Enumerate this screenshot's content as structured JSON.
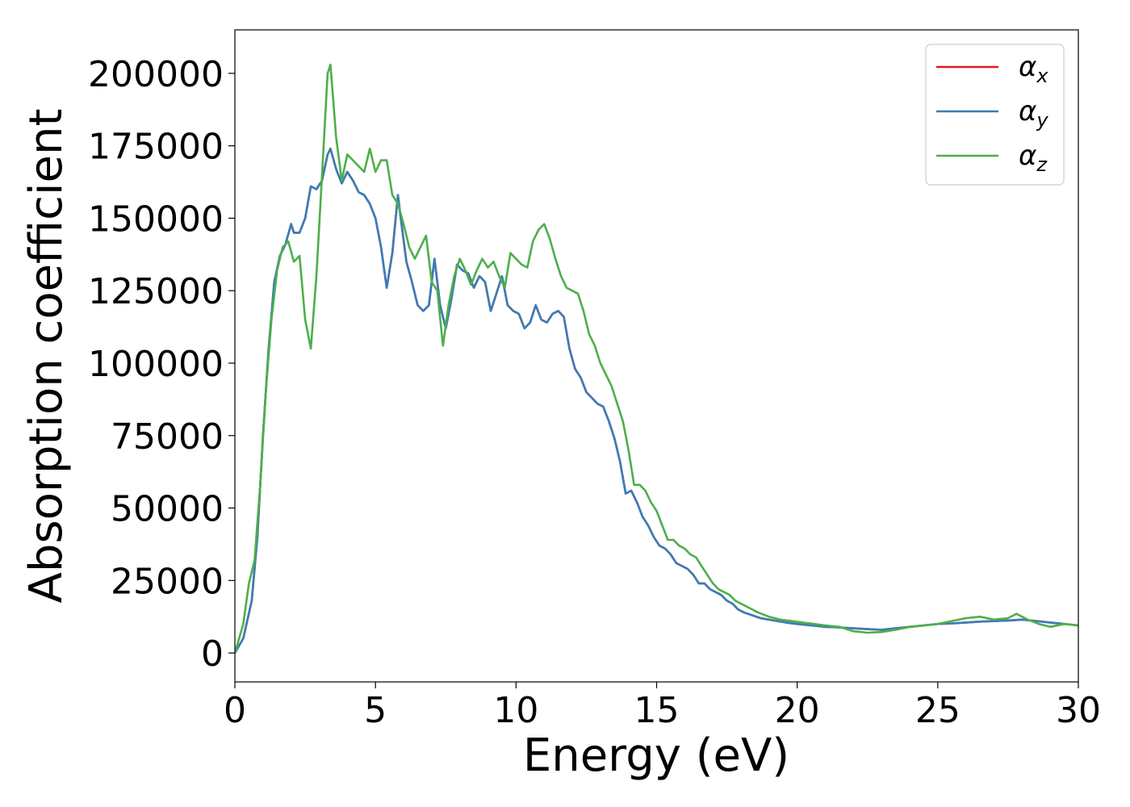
{
  "chart_data": {
    "type": "line",
    "title": "",
    "xlabel": "Energy (eV)",
    "ylabel": "Absorption coefficient",
    "xlim": [
      0,
      30
    ],
    "ylim": [
      -10000,
      215000
    ],
    "xticks": [
      0,
      5,
      10,
      15,
      20,
      25,
      30
    ],
    "yticks": [
      0,
      25000,
      50000,
      75000,
      100000,
      125000,
      150000,
      175000,
      200000
    ],
    "xtick_labels": [
      "0",
      "5",
      "10",
      "15",
      "20",
      "25",
      "30"
    ],
    "ytick_labels": [
      "0",
      "25000",
      "50000",
      "75000",
      "100000",
      "125000",
      "150000",
      "175000",
      "200000"
    ],
    "grid": false,
    "legend": {
      "position": "top-right",
      "entries": [
        {
          "base": "α",
          "sub": "x"
        },
        {
          "base": "α",
          "sub": "y"
        },
        {
          "base": "α",
          "sub": "z"
        }
      ]
    },
    "series": [
      {
        "name": "αx",
        "color": "#e41a1c",
        "x": [
          0,
          0.3,
          0.6,
          0.8,
          1.0,
          1.2,
          1.4,
          1.6,
          1.8,
          2.0,
          2.1,
          2.3,
          2.5,
          2.7,
          2.9,
          3.1,
          3.3,
          3.4,
          3.6,
          3.8,
          4.0,
          4.2,
          4.4,
          4.6,
          4.8,
          5.0,
          5.2,
          5.4,
          5.6,
          5.8,
          5.9,
          6.1,
          6.3,
          6.5,
          6.7,
          6.9,
          7.1,
          7.3,
          7.5,
          7.7,
          7.9,
          8.1,
          8.3,
          8.5,
          8.7,
          8.9,
          9.1,
          9.3,
          9.5,
          9.7,
          9.9,
          10.1,
          10.3,
          10.5,
          10.7,
          10.9,
          11.1,
          11.3,
          11.5,
          11.7,
          11.9,
          12.1,
          12.3,
          12.5,
          12.7,
          12.9,
          13.1,
          13.3,
          13.5,
          13.7,
          13.9,
          14.1,
          14.3,
          14.5,
          14.7,
          14.9,
          15.1,
          15.3,
          15.5,
          15.7,
          15.9,
          16.1,
          16.3,
          16.5,
          16.7,
          16.9,
          17.1,
          17.3,
          17.5,
          17.7,
          17.9,
          18.1,
          18.4,
          18.7,
          19.0,
          19.3,
          19.6,
          20.0,
          20.5,
          21.0,
          21.5,
          22.0,
          22.5,
          23.0,
          23.5,
          24.0,
          24.5,
          25.0,
          25.5,
          26.0,
          26.5,
          27.0,
          27.5,
          28.0,
          28.5,
          29.0,
          29.5,
          30.0
        ],
        "values": [
          0,
          5000,
          18000,
          40000,
          75000,
          105000,
          128000,
          137000,
          141000,
          148000,
          145000,
          145000,
          150000,
          161000,
          160000,
          163000,
          172000,
          174000,
          167000,
          162000,
          166000,
          163000,
          159000,
          158000,
          155000,
          150000,
          140000,
          126000,
          138000,
          158000,
          150000,
          135000,
          128000,
          120000,
          118000,
          120000,
          136000,
          120000,
          112000,
          122000,
          134000,
          132000,
          131000,
          126000,
          130000,
          128000,
          118000,
          124000,
          130000,
          120000,
          118000,
          117000,
          112000,
          114000,
          120000,
          115000,
          114000,
          117000,
          118000,
          116000,
          105000,
          98000,
          95000,
          90000,
          88000,
          86000,
          85000,
          80000,
          74000,
          66000,
          55000,
          56000,
          52000,
          47000,
          44000,
          40000,
          37000,
          36000,
          34000,
          31000,
          30000,
          29000,
          27000,
          24000,
          24000,
          22000,
          21000,
          20000,
          18000,
          17000,
          15000,
          14000,
          13000,
          12000,
          11500,
          11000,
          10500,
          10000,
          9500,
          9000,
          8800,
          8500,
          8200,
          8000,
          8500,
          9000,
          9500,
          10000,
          10200,
          10500,
          10800,
          11000,
          11200,
          11500,
          11000,
          10500,
          10000,
          9500
        ]
      },
      {
        "name": "αy",
        "color": "#377eb8",
        "x": [
          0,
          0.3,
          0.6,
          0.8,
          1.0,
          1.2,
          1.4,
          1.6,
          1.8,
          2.0,
          2.1,
          2.3,
          2.5,
          2.7,
          2.9,
          3.1,
          3.3,
          3.4,
          3.6,
          3.8,
          4.0,
          4.2,
          4.4,
          4.6,
          4.8,
          5.0,
          5.2,
          5.4,
          5.6,
          5.8,
          5.9,
          6.1,
          6.3,
          6.5,
          6.7,
          6.9,
          7.1,
          7.3,
          7.5,
          7.7,
          7.9,
          8.1,
          8.3,
          8.5,
          8.7,
          8.9,
          9.1,
          9.3,
          9.5,
          9.7,
          9.9,
          10.1,
          10.3,
          10.5,
          10.7,
          10.9,
          11.1,
          11.3,
          11.5,
          11.7,
          11.9,
          12.1,
          12.3,
          12.5,
          12.7,
          12.9,
          13.1,
          13.3,
          13.5,
          13.7,
          13.9,
          14.1,
          14.3,
          14.5,
          14.7,
          14.9,
          15.1,
          15.3,
          15.5,
          15.7,
          15.9,
          16.1,
          16.3,
          16.5,
          16.7,
          16.9,
          17.1,
          17.3,
          17.5,
          17.7,
          17.9,
          18.1,
          18.4,
          18.7,
          19.0,
          19.3,
          19.6,
          20.0,
          20.5,
          21.0,
          21.5,
          22.0,
          22.5,
          23.0,
          23.5,
          24.0,
          24.5,
          25.0,
          25.5,
          26.0,
          26.5,
          27.0,
          27.5,
          28.0,
          28.5,
          29.0,
          29.5,
          30.0
        ],
        "values": [
          0,
          5000,
          18000,
          40000,
          75000,
          105000,
          128000,
          137000,
          141000,
          148000,
          145000,
          145000,
          150000,
          161000,
          160000,
          163000,
          172000,
          174000,
          167000,
          162000,
          166000,
          163000,
          159000,
          158000,
          155000,
          150000,
          140000,
          126000,
          138000,
          158000,
          150000,
          135000,
          128000,
          120000,
          118000,
          120000,
          136000,
          120000,
          112000,
          122000,
          134000,
          132000,
          131000,
          126000,
          130000,
          128000,
          118000,
          124000,
          130000,
          120000,
          118000,
          117000,
          112000,
          114000,
          120000,
          115000,
          114000,
          117000,
          118000,
          116000,
          105000,
          98000,
          95000,
          90000,
          88000,
          86000,
          85000,
          80000,
          74000,
          66000,
          55000,
          56000,
          52000,
          47000,
          44000,
          40000,
          37000,
          36000,
          34000,
          31000,
          30000,
          29000,
          27000,
          24000,
          24000,
          22000,
          21000,
          20000,
          18000,
          17000,
          15000,
          14000,
          13000,
          12000,
          11500,
          11000,
          10500,
          10000,
          9500,
          9000,
          8800,
          8500,
          8200,
          8000,
          8500,
          9000,
          9500,
          10000,
          10200,
          10500,
          10800,
          11000,
          11200,
          11500,
          11000,
          10500,
          10000,
          9500
        ]
      },
      {
        "name": "αz",
        "color": "#4daf4a",
        "x": [
          0,
          0.3,
          0.5,
          0.7,
          0.9,
          1.1,
          1.3,
          1.5,
          1.7,
          1.9,
          2.1,
          2.3,
          2.5,
          2.7,
          2.9,
          3.1,
          3.3,
          3.4,
          3.6,
          3.8,
          4.0,
          4.2,
          4.4,
          4.6,
          4.8,
          5.0,
          5.2,
          5.4,
          5.6,
          5.8,
          6.0,
          6.2,
          6.4,
          6.6,
          6.8,
          7.0,
          7.2,
          7.4,
          7.6,
          7.8,
          8.0,
          8.2,
          8.4,
          8.6,
          8.8,
          9.0,
          9.2,
          9.4,
          9.6,
          9.8,
          10.0,
          10.2,
          10.4,
          10.6,
          10.8,
          11.0,
          11.2,
          11.4,
          11.6,
          11.8,
          12.0,
          12.2,
          12.4,
          12.6,
          12.8,
          13.0,
          13.2,
          13.4,
          13.6,
          13.8,
          14.0,
          14.2,
          14.4,
          14.6,
          14.8,
          15.0,
          15.2,
          15.4,
          15.6,
          15.8,
          16.0,
          16.2,
          16.4,
          16.6,
          16.8,
          17.0,
          17.2,
          17.4,
          17.6,
          17.8,
          18.0,
          18.3,
          18.6,
          19.0,
          19.4,
          19.8,
          20.2,
          20.6,
          21.0,
          21.5,
          22.0,
          22.5,
          23.0,
          23.5,
          24.0,
          24.5,
          25.0,
          25.5,
          26.0,
          26.5,
          27.0,
          27.5,
          27.8,
          28.2,
          28.6,
          29.0,
          29.5,
          30.0
        ],
        "values": [
          0,
          10000,
          24000,
          32000,
          58000,
          90000,
          115000,
          132000,
          140000,
          142000,
          135000,
          137000,
          115000,
          105000,
          130000,
          165000,
          200000,
          203000,
          178000,
          163000,
          172000,
          170000,
          168000,
          166000,
          174000,
          166000,
          170000,
          170000,
          158000,
          155000,
          148000,
          140000,
          136000,
          140000,
          144000,
          128000,
          125000,
          106000,
          120000,
          130000,
          136000,
          132000,
          127000,
          132000,
          136000,
          133000,
          135000,
          130000,
          126000,
          138000,
          136000,
          134000,
          133000,
          142000,
          146000,
          148000,
          143000,
          136000,
          130000,
          126000,
          125000,
          124000,
          118000,
          110000,
          106000,
          100000,
          96000,
          92000,
          86000,
          80000,
          70000,
          58000,
          58000,
          56000,
          52000,
          49000,
          44000,
          39000,
          39000,
          37000,
          36000,
          34000,
          33000,
          30000,
          27000,
          24000,
          22000,
          21000,
          20000,
          18000,
          17000,
          15500,
          14000,
          12500,
          11500,
          11000,
          10500,
          10000,
          9500,
          9000,
          7500,
          7000,
          7200,
          8000,
          9000,
          9500,
          10000,
          11000,
          12000,
          12500,
          11500,
          12000,
          13500,
          11500,
          10000,
          9000,
          10000,
          9500
        ]
      }
    ]
  }
}
